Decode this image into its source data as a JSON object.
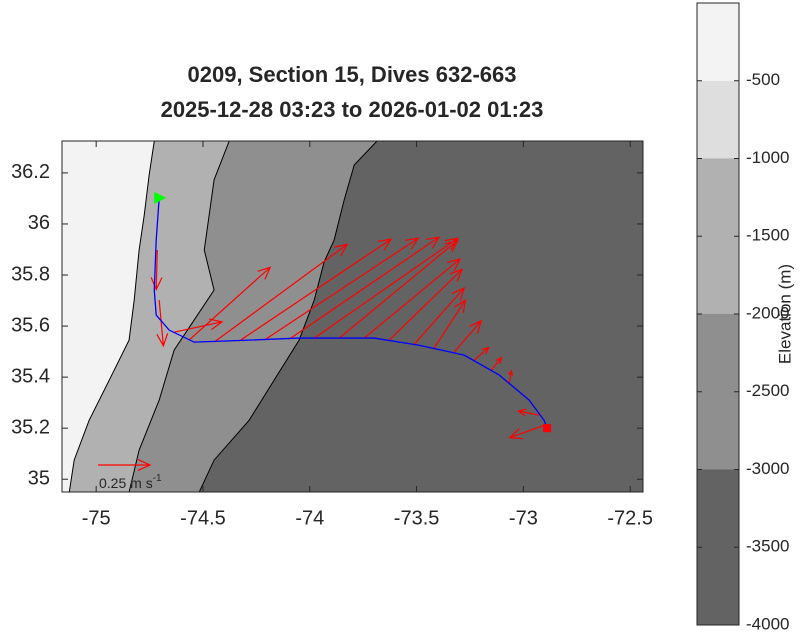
{
  "chart_data": {
    "type": "map",
    "title": "0209, Section 15, Dives 632-663",
    "subtitle": "2025-12-28 03:23 to 2026-01-02 01:23",
    "xlim": [
      -75.16,
      -72.44
    ],
    "xticks": [
      -75,
      -74.5,
      -74,
      -73.5,
      -73,
      -72.5
    ],
    "ylim": [
      34.95,
      36.325
    ],
    "yticks": [
      35,
      35.2,
      35.4,
      35.6,
      35.8,
      36,
      36.2
    ],
    "colorbar": {
      "label": "Elevation (m)",
      "clim": [
        -4000,
        0
      ],
      "ticks": [
        -4000,
        -3500,
        -3000,
        -2500,
        -2000,
        -1500,
        -1000,
        -500
      ],
      "levels": [
        {
          "from": -4000,
          "to": -3000,
          "color": "#636363"
        },
        {
          "from": -3000,
          "to": -2000,
          "color": "#8f8f8f"
        },
        {
          "from": -2000,
          "to": -1000,
          "color": "#b1b1b1"
        },
        {
          "from": -1000,
          "to": -500,
          "color": "#dedede"
        },
        {
          "from": -500,
          "to": 0,
          "color": "#f3f3f3"
        }
      ]
    },
    "bathymetry": [
      {
        "level": -1000,
        "lon": [
          -74.728,
          -74.752,
          -74.775,
          -74.799,
          -74.822,
          -74.846,
          -74.939,
          -75.033,
          -75.103,
          -75.126
        ],
        "lat": [
          36.325,
          36.192,
          36.035,
          35.898,
          35.702,
          35.545,
          35.388,
          35.231,
          35.075,
          34.949
        ]
      },
      {
        "level": -2000,
        "lon": [
          -74.377,
          -74.448,
          -74.471,
          -74.494,
          -74.448,
          -74.541,
          -74.635,
          -74.705,
          -74.799,
          -74.846
        ],
        "lat": [
          36.325,
          36.173,
          36.035,
          35.898,
          35.741,
          35.624,
          35.506,
          35.31,
          35.114,
          34.949
        ]
      },
      {
        "level": -3000,
        "lon": [
          -73.685,
          -73.792,
          -73.839,
          -73.886,
          -73.933,
          -73.979,
          -74.05,
          -74.167,
          -74.284,
          -74.448,
          -74.518
        ],
        "lat": [
          36.325,
          36.231,
          36.094,
          35.937,
          35.851,
          35.702,
          35.545,
          35.388,
          35.231,
          35.075,
          34.949
        ]
      }
    ],
    "track": {
      "color": "#0000ff",
      "lon": [
        -74.705,
        -74.719,
        -74.728,
        -74.719,
        -74.658,
        -74.541,
        -74.284,
        -74.05,
        -73.699,
        -73.488,
        -73.277,
        -73.113,
        -72.973,
        -72.903,
        -72.889
      ],
      "lat": [
        36.102,
        35.937,
        35.741,
        35.643,
        35.584,
        35.537,
        35.545,
        35.553,
        35.553,
        35.525,
        35.486,
        35.408,
        35.31,
        35.231,
        35.2
      ]
    },
    "start": {
      "lon": -74.705,
      "lat": 36.102,
      "color": "#00ff00"
    },
    "end": {
      "lon": -72.889,
      "lat": 35.2,
      "color": "#ff0000"
    },
    "arrow_color": "#ff0000",
    "arrows": [
      {
        "lon": -74.714,
        "lat": 35.898,
        "u": -0.005,
        "v": -0.19
      },
      {
        "lon": -74.705,
        "lat": 35.702,
        "u": 0.02,
        "v": -0.22
      },
      {
        "lon": -74.635,
        "lat": 35.576,
        "u": 0.23,
        "v": 0.05
      },
      {
        "lon": -74.565,
        "lat": 35.545,
        "u": 0.39,
        "v": 0.35
      },
      {
        "lon": -74.448,
        "lat": 35.537,
        "u": 0.64,
        "v": 0.47
      },
      {
        "lon": -74.331,
        "lat": 35.541,
        "u": 0.73,
        "v": 0.49
      },
      {
        "lon": -74.213,
        "lat": 35.545,
        "u": 0.74,
        "v": 0.49
      },
      {
        "lon": -74.096,
        "lat": 35.549,
        "u": 0.72,
        "v": 0.49
      },
      {
        "lon": -73.979,
        "lat": 35.553,
        "u": 0.69,
        "v": 0.48
      },
      {
        "lon": -73.862,
        "lat": 35.553,
        "u": 0.57,
        "v": 0.47
      },
      {
        "lon": -73.745,
        "lat": 35.553,
        "u": 0.46,
        "v": 0.38
      },
      {
        "lon": -73.628,
        "lat": 35.545,
        "u": 0.35,
        "v": 0.34
      },
      {
        "lon": -73.511,
        "lat": 35.529,
        "u": 0.24,
        "v": 0.27
      },
      {
        "lon": -73.418,
        "lat": 35.514,
        "u": 0.15,
        "v": 0.23
      },
      {
        "lon": -73.324,
        "lat": 35.498,
        "u": 0.13,
        "v": 0.15
      },
      {
        "lon": -73.23,
        "lat": 35.467,
        "u": 0.07,
        "v": 0.06
      },
      {
        "lon": -73.151,
        "lat": 35.427,
        "u": 0.05,
        "v": 0.06
      },
      {
        "lon": -73.066,
        "lat": 35.376,
        "u": 0.01,
        "v": 0.06
      },
      {
        "lon": -72.926,
        "lat": 35.251,
        "u": -0.1,
        "v": 0.02
      },
      {
        "lon": -72.898,
        "lat": 35.212,
        "u": -0.17,
        "v": -0.06
      }
    ],
    "scale": {
      "value": 0.25,
      "label": "0.25 m s",
      "exponent": "-1"
    }
  }
}
